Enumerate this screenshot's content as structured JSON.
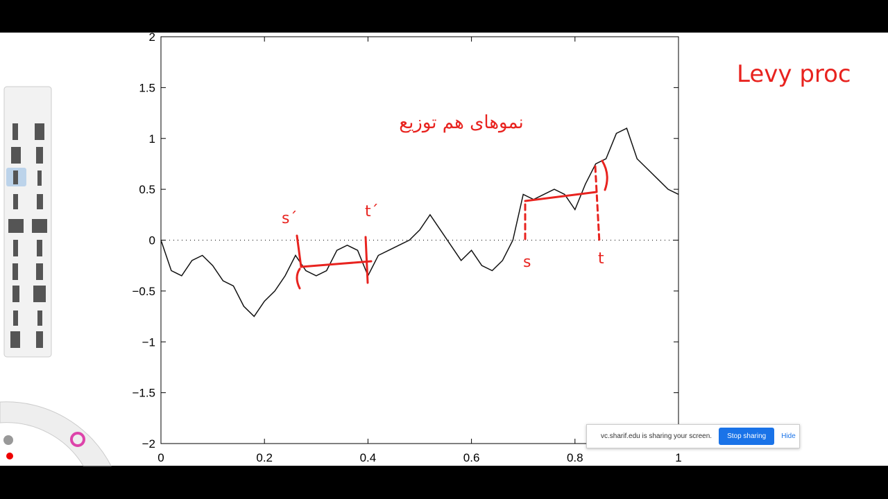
{
  "chart_data": {
    "type": "line",
    "x": [
      0,
      0.02,
      0.04,
      0.06,
      0.08,
      0.1,
      0.12,
      0.14,
      0.16,
      0.18,
      0.2,
      0.22,
      0.24,
      0.26,
      0.28,
      0.3,
      0.32,
      0.34,
      0.36,
      0.38,
      0.4,
      0.42,
      0.44,
      0.46,
      0.48,
      0.5,
      0.52,
      0.54,
      0.56,
      0.58,
      0.6,
      0.62,
      0.64,
      0.66,
      0.68,
      0.7,
      0.72,
      0.74,
      0.76,
      0.78,
      0.8,
      0.82,
      0.84,
      0.86,
      0.88,
      0.9,
      0.92,
      0.94,
      0.96,
      0.98,
      1
    ],
    "values": [
      0,
      -0.3,
      -0.35,
      -0.2,
      -0.15,
      -0.25,
      -0.4,
      -0.45,
      -0.65,
      -0.75,
      -0.6,
      -0.5,
      -0.35,
      -0.15,
      -0.3,
      -0.35,
      -0.3,
      -0.1,
      -0.05,
      -0.1,
      -0.35,
      -0.15,
      -0.1,
      -0.05,
      0,
      0.1,
      0.25,
      0.1,
      -0.05,
      -0.2,
      -0.1,
      -0.25,
      -0.3,
      -0.2,
      0,
      0.45,
      0.4,
      0.45,
      0.5,
      0.45,
      0.3,
      0.55,
      0.75,
      0.8,
      1.05,
      1.1,
      0.8,
      0.7,
      0.6,
      0.5,
      0.45
    ],
    "color": "#111111",
    "xlim": [
      0,
      1
    ],
    "xticks": [
      0,
      0.2,
      0.4,
      0.6,
      0.8,
      1
    ],
    "ylim": [
      -2,
      2
    ],
    "yticks": [
      {
        "value": -2,
        "label": "−2"
      },
      {
        "value": -1.5,
        "label": "−1.5"
      },
      {
        "value": -1,
        "label": "−1"
      },
      {
        "value": -0.5,
        "label": "−0.5"
      },
      0,
      0.5,
      1,
      1.5,
      2
    ],
    "hline": 0
  },
  "handwriting": {
    "title": "Levy proc",
    "persian": "نموهای هم توزیع",
    "s_prime": "s´",
    "t_prime": "t´",
    "s": "s",
    "t": "t"
  },
  "share_bar": {
    "message": "vc.sharif.edu is sharing your screen.",
    "stop": "Stop sharing",
    "hide": "Hide"
  }
}
